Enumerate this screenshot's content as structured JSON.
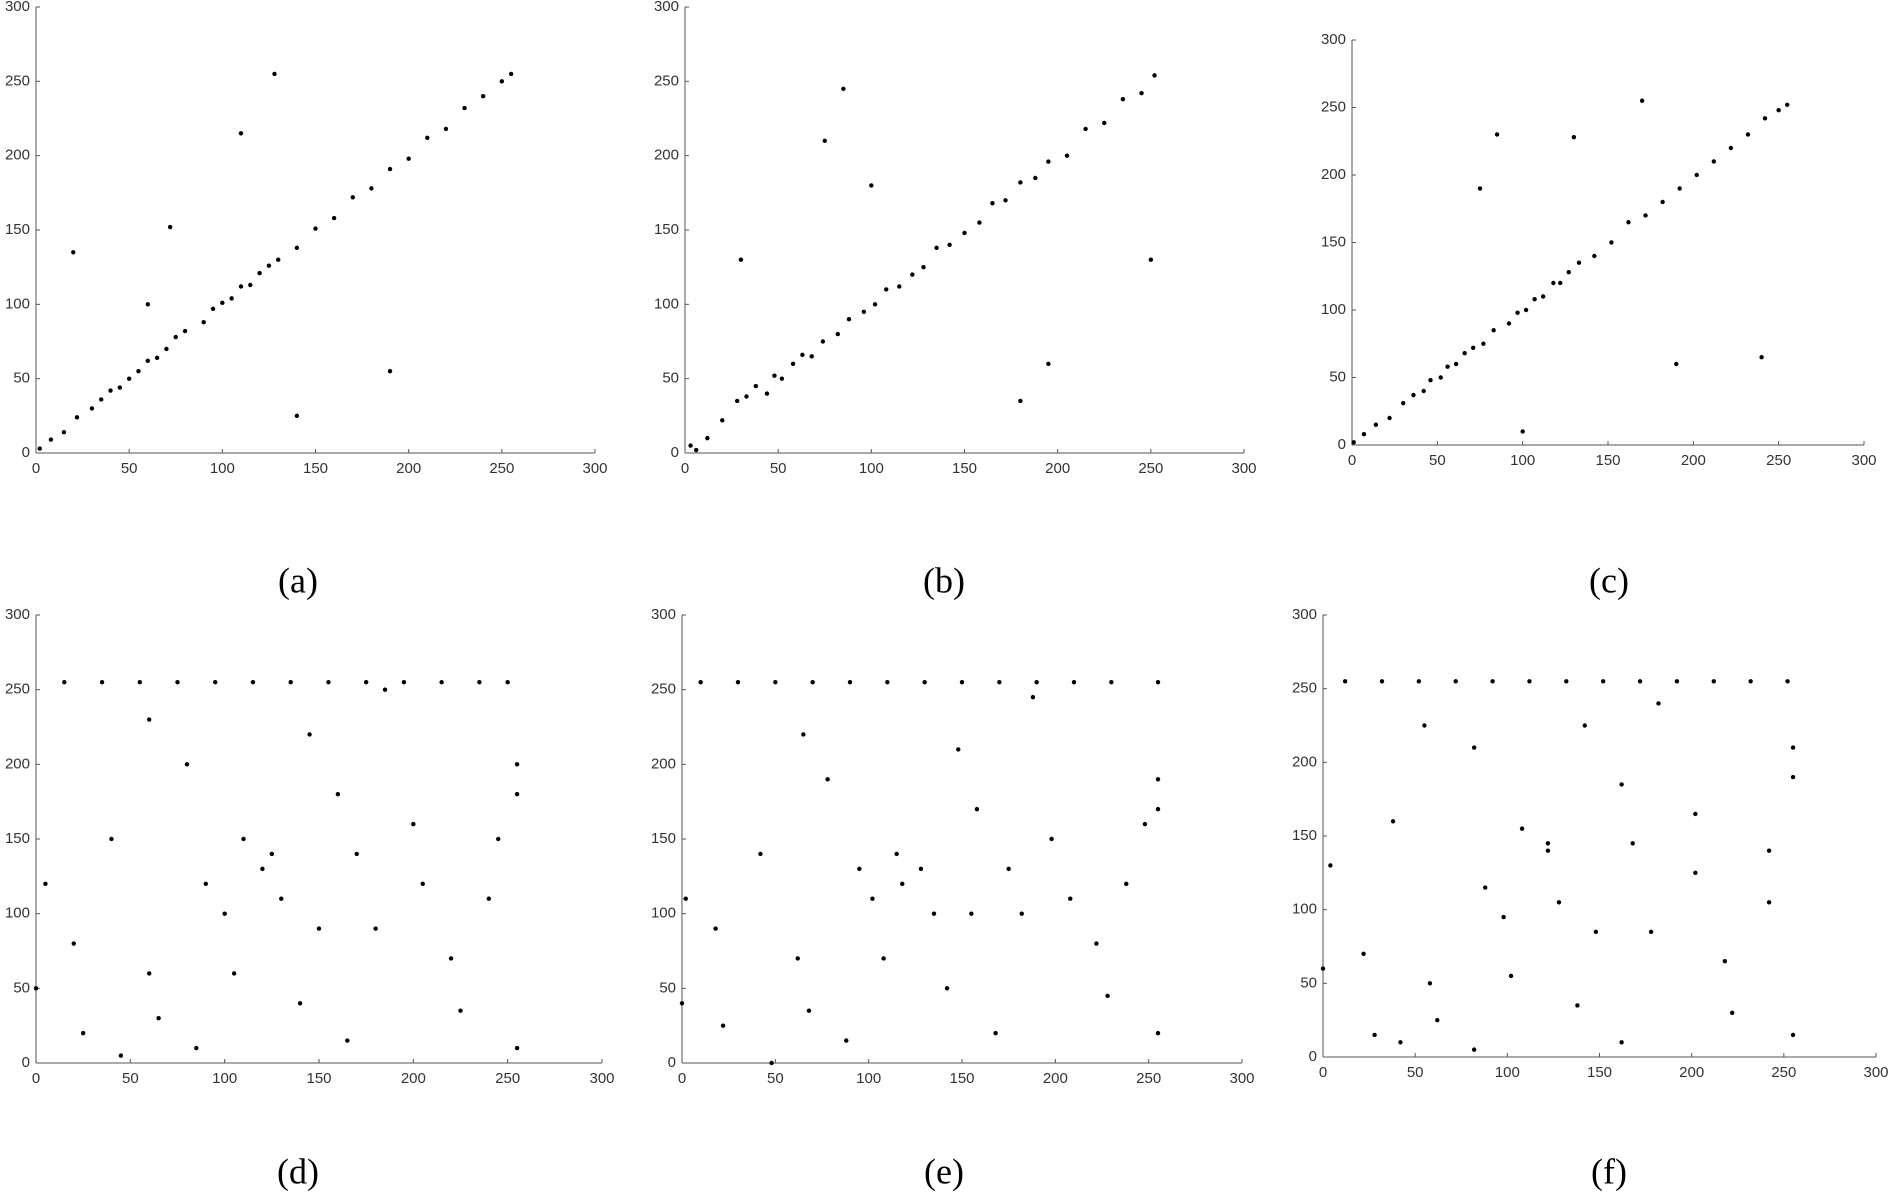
{
  "chart_data": [
    {
      "type": "scatter",
      "caption": "(a)",
      "color": "#000000",
      "xlim": [
        0,
        300
      ],
      "ylim": [
        0,
        300
      ],
      "xticks": [
        0,
        50,
        100,
        150,
        200,
        250,
        300
      ],
      "yticks": [
        0,
        50,
        100,
        150,
        200,
        250,
        300
      ],
      "x": [
        2,
        8,
        15,
        22,
        30,
        35,
        40,
        45,
        50,
        55,
        60,
        65,
        70,
        75,
        80,
        90,
        95,
        100,
        105,
        110,
        115,
        120,
        125,
        130,
        140,
        150,
        160,
        170,
        180,
        190,
        200,
        210,
        220,
        230,
        240,
        250,
        255,
        72,
        110,
        190,
        140,
        60,
        20,
        128
      ],
      "y": [
        3,
        9,
        14,
        24,
        30,
        36,
        42,
        44,
        50,
        55,
        62,
        64,
        70,
        78,
        82,
        88,
        97,
        101,
        104,
        112,
        113,
        121,
        126,
        130,
        138,
        151,
        158,
        172,
        178,
        191,
        198,
        212,
        218,
        232,
        240,
        250,
        255,
        152,
        215,
        55,
        25,
        100,
        135,
        255
      ]
    },
    {
      "type": "scatter",
      "caption": "(b)",
      "color": "#000000",
      "xlim": [
        0,
        300
      ],
      "ylim": [
        0,
        300
      ],
      "xticks": [
        0,
        50,
        100,
        150,
        200,
        250,
        300
      ],
      "yticks": [
        0,
        50,
        100,
        150,
        200,
        250,
        300
      ],
      "x": [
        3,
        6,
        12,
        20,
        28,
        33,
        38,
        44,
        48,
        52,
        58,
        63,
        68,
        74,
        82,
        88,
        96,
        102,
        108,
        115,
        122,
        128,
        135,
        142,
        150,
        158,
        165,
        172,
        180,
        188,
        195,
        205,
        215,
        225,
        235,
        245,
        252,
        75,
        85,
        100,
        180,
        195,
        30,
        250
      ],
      "y": [
        5,
        2,
        10,
        22,
        35,
        38,
        45,
        40,
        52,
        50,
        60,
        66,
        65,
        75,
        80,
        90,
        95,
        100,
        110,
        112,
        120,
        125,
        138,
        140,
        148,
        155,
        168,
        170,
        182,
        185,
        196,
        200,
        218,
        222,
        238,
        242,
        254,
        210,
        245,
        180,
        35,
        60,
        130,
        130
      ]
    },
    {
      "type": "scatter",
      "caption": "(c)",
      "color": "#000000",
      "xlim": [
        0,
        300
      ],
      "ylim": [
        0,
        300
      ],
      "xticks": [
        0,
        50,
        100,
        150,
        200,
        250,
        300
      ],
      "yticks": [
        0,
        50,
        100,
        150,
        200,
        250,
        300
      ],
      "x": [
        1,
        7,
        14,
        22,
        30,
        36,
        42,
        46,
        52,
        56,
        61,
        66,
        71,
        77,
        83,
        92,
        97,
        102,
        107,
        112,
        118,
        122,
        127,
        133,
        142,
        152,
        162,
        172,
        182,
        192,
        202,
        212,
        222,
        232,
        242,
        250,
        255,
        75,
        85,
        170,
        190,
        240,
        100,
        130
      ],
      "y": [
        2,
        8,
        15,
        20,
        31,
        37,
        40,
        48,
        50,
        58,
        60,
        68,
        72,
        75,
        85,
        90,
        98,
        100,
        108,
        110,
        120,
        120,
        128,
        135,
        140,
        150,
        165,
        170,
        180,
        190,
        200,
        210,
        220,
        230,
        242,
        248,
        252,
        190,
        230,
        255,
        60,
        65,
        10,
        228
      ]
    },
    {
      "type": "scatter",
      "caption": "(d)",
      "color": "#000000",
      "xlim": [
        0,
        300
      ],
      "ylim": [
        0,
        300
      ],
      "xticks": [
        0,
        50,
        100,
        150,
        200,
        250,
        300
      ],
      "yticks": [
        0,
        50,
        100,
        150,
        200,
        250,
        300
      ],
      "x": [
        5,
        20,
        40,
        60,
        80,
        100,
        120,
        140,
        160,
        180,
        200,
        220,
        240,
        255,
        15,
        35,
        55,
        75,
        95,
        115,
        135,
        155,
        175,
        195,
        215,
        235,
        250,
        0,
        25,
        45,
        65,
        85,
        105,
        125,
        145,
        165,
        185,
        205,
        225,
        245,
        90,
        110,
        130,
        150,
        170,
        255,
        255,
        60
      ],
      "y": [
        120,
        80,
        150,
        60,
        200,
        100,
        130,
        40,
        180,
        90,
        160,
        70,
        110,
        200,
        255,
        255,
        255,
        255,
        255,
        255,
        255,
        255,
        255,
        255,
        255,
        255,
        255,
        50,
        20,
        5,
        30,
        10,
        60,
        140,
        220,
        15,
        250,
        120,
        35,
        150,
        120,
        150,
        110,
        90,
        140,
        10,
        180,
        230
      ]
    },
    {
      "type": "scatter",
      "caption": "(e)",
      "color": "#000000",
      "xlim": [
        0,
        300
      ],
      "ylim": [
        0,
        300
      ],
      "xticks": [
        0,
        50,
        100,
        150,
        200,
        250,
        300
      ],
      "yticks": [
        0,
        50,
        100,
        150,
        200,
        250,
        300
      ],
      "x": [
        2,
        18,
        42,
        62,
        78,
        102,
        118,
        142,
        158,
        182,
        198,
        222,
        238,
        255,
        10,
        30,
        50,
        70,
        90,
        110,
        130,
        150,
        170,
        190,
        210,
        230,
        255,
        0,
        22,
        48,
        68,
        88,
        108,
        128,
        148,
        168,
        188,
        208,
        228,
        248,
        95,
        115,
        135,
        155,
        175,
        255,
        255,
        65
      ],
      "y": [
        110,
        90,
        140,
        70,
        190,
        110,
        120,
        50,
        170,
        100,
        150,
        80,
        120,
        190,
        255,
        255,
        255,
        255,
        255,
        255,
        255,
        255,
        255,
        255,
        255,
        255,
        255,
        40,
        25,
        0,
        35,
        15,
        70,
        130,
        210,
        20,
        245,
        110,
        45,
        160,
        130,
        140,
        100,
        100,
        130,
        20,
        170,
        220
      ]
    },
    {
      "type": "scatter",
      "caption": "(f)",
      "color": "#000000",
      "xlim": [
        0,
        300
      ],
      "ylim": [
        0,
        300
      ],
      "xticks": [
        0,
        50,
        100,
        150,
        200,
        250,
        300
      ],
      "yticks": [
        0,
        50,
        100,
        150,
        200,
        250,
        300
      ],
      "x": [
        4,
        22,
        38,
        58,
        82,
        98,
        122,
        138,
        162,
        178,
        202,
        218,
        242,
        255,
        12,
        32,
        52,
        72,
        92,
        112,
        132,
        152,
        172,
        192,
        212,
        232,
        252,
        0,
        28,
        42,
        62,
        82,
        102,
        122,
        142,
        162,
        182,
        202,
        222,
        242,
        88,
        108,
        128,
        148,
        168,
        255,
        255,
        55
      ],
      "y": [
        130,
        70,
        160,
        50,
        210,
        95,
        140,
        35,
        185,
        85,
        165,
        65,
        105,
        210,
        255,
        255,
        255,
        255,
        255,
        255,
        255,
        255,
        255,
        255,
        255,
        255,
        255,
        60,
        15,
        10,
        25,
        5,
        55,
        145,
        225,
        10,
        240,
        125,
        30,
        140,
        115,
        155,
        105,
        85,
        145,
        15,
        190,
        225
      ]
    }
  ]
}
